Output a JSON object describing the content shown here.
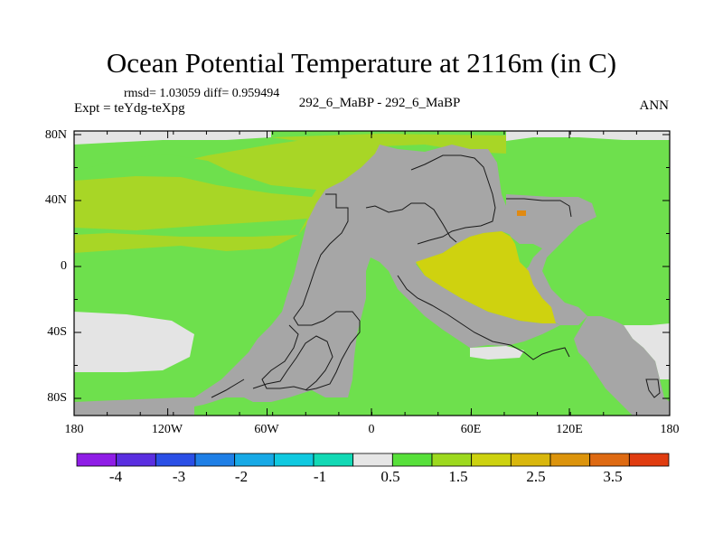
{
  "title": "Ocean Potential Temperature at 2116m (in C)",
  "stats": "rmsd= 1.03059 diff= 0.959494",
  "experiment": "Expt = teYdg-teXpg",
  "subtitle": "292_6_MaBP - 292_6_MaBP",
  "season": "ANN",
  "lat_labels": [
    "80N",
    "40N",
    "0",
    "40S",
    "80S"
  ],
  "lon_labels": [
    "180",
    "120W",
    "60W",
    "0",
    "60E",
    "120E",
    "180"
  ],
  "colorbar": {
    "colors": [
      "#8f1de6",
      "#5a2ee0",
      "#2a4fe6",
      "#1f7fe6",
      "#17a9e6",
      "#10c9e0",
      "#12d9b5",
      "#e6e6e6",
      "#57e03a",
      "#9dd91e",
      "#cdd20f",
      "#d9b70c",
      "#dc940c",
      "#de6a12",
      "#e03c10"
    ],
    "labels": [
      "-4",
      "-3",
      "-2",
      "-1",
      "0.5",
      "1.5",
      "2.5",
      "3.5"
    ]
  },
  "map_colors": {
    "land": "#a6a6a6",
    "ocean_base": "#6ee04d",
    "warm_band": "#a8d626",
    "hot_pool": "#cfd20f",
    "cold_ice": "#e4e4e4",
    "orange_spot": "#e08a12"
  }
}
